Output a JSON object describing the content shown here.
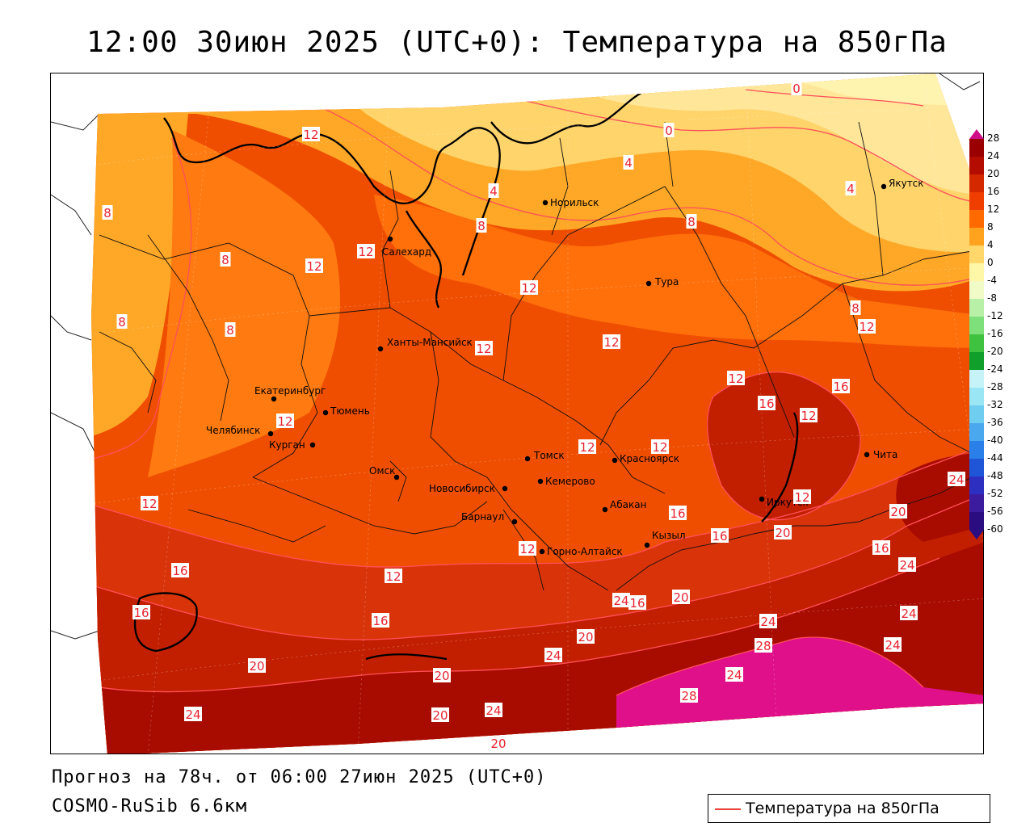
{
  "title": "12:00 30июн 2025 (UTC+0): Температура на 850гПа",
  "forecast_info": "Прогноз на 78ч. от 06:00 27июн 2025 (UTC+0)",
  "model_name": "COSMO-RuSib 6.6км",
  "legend": {
    "label": "Температура на 850гПа",
    "line_color": "#e8443a"
  },
  "colorbar": {
    "ticks": [
      "28",
      "24",
      "20",
      "16",
      "12",
      "8",
      "4",
      "0",
      "-4",
      "-8",
      "-12",
      "-16",
      "-20",
      "-24",
      "-28",
      "-32",
      "-36",
      "-40",
      "-44",
      "-48",
      "-52",
      "-56",
      "-60"
    ],
    "colors": [
      "#ce0f87",
      "#9b0000",
      "#b50c00",
      "#d32800",
      "#ef3e00",
      "#ff6a00",
      "#ffa31f",
      "#ffd76b",
      "#fff7a8",
      "#f0fbc8",
      "#b8f0a8",
      "#7de07a",
      "#3fc23f",
      "#0f9f2a",
      "#c6f3f8",
      "#9be6f4",
      "#6fcdf0",
      "#4aa8ee",
      "#2a7fe8",
      "#1f56d8",
      "#2c2fc0",
      "#3b1b9e",
      "#2a0d80"
    ]
  },
  "cities": [
    {
      "name": "Норильск"
    },
    {
      "name": "Якутск"
    },
    {
      "name": "Салехард"
    },
    {
      "name": "Тура"
    },
    {
      "name": "Ханты-Мансийск"
    },
    {
      "name": "Екатеринбург"
    },
    {
      "name": "Тюмень"
    },
    {
      "name": "Челябинск"
    },
    {
      "name": "Курган"
    },
    {
      "name": "Омск"
    },
    {
      "name": "Томск"
    },
    {
      "name": "Красноярск"
    },
    {
      "name": "Новосибирск"
    },
    {
      "name": "Кемерово"
    },
    {
      "name": "Абакан"
    },
    {
      "name": "Барнаул"
    },
    {
      "name": "Горно-Алтайск"
    },
    {
      "name": "Кызыл"
    },
    {
      "name": "Иркутск"
    },
    {
      "name": "Чита"
    }
  ],
  "isotherm_labels": [
    {
      "value": "12"
    },
    {
      "value": "0"
    },
    {
      "value": "0"
    },
    {
      "value": "4"
    },
    {
      "value": "4"
    },
    {
      "value": "4"
    },
    {
      "value": "8"
    },
    {
      "value": "8"
    },
    {
      "value": "8"
    },
    {
      "value": "8"
    },
    {
      "value": "12"
    },
    {
      "value": "12"
    },
    {
      "value": "8"
    },
    {
      "value": "8"
    },
    {
      "value": "12"
    },
    {
      "value": "12"
    },
    {
      "value": "12"
    },
    {
      "value": "8"
    },
    {
      "value": "12"
    },
    {
      "value": "12"
    },
    {
      "value": "16"
    },
    {
      "value": "16"
    },
    {
      "value": "12"
    },
    {
      "value": "12"
    },
    {
      "value": "12"
    },
    {
      "value": "12"
    },
    {
      "value": "12"
    },
    {
      "value": "16"
    },
    {
      "value": "16"
    },
    {
      "value": "16"
    },
    {
      "value": "24"
    },
    {
      "value": "20"
    },
    {
      "value": "20"
    },
    {
      "value": "16"
    },
    {
      "value": "12"
    },
    {
      "value": "12"
    },
    {
      "value": "16"
    },
    {
      "value": "12"
    },
    {
      "value": "16"
    },
    {
      "value": "16"
    },
    {
      "value": "20"
    },
    {
      "value": "24"
    },
    {
      "value": "20"
    },
    {
      "value": "24"
    },
    {
      "value": "24"
    },
    {
      "value": "20"
    },
    {
      "value": "28"
    },
    {
      "value": "24"
    },
    {
      "value": "24"
    },
    {
      "value": "24"
    },
    {
      "value": "28"
    },
    {
      "value": "20"
    },
    {
      "value": "24"
    },
    {
      "value": "20"
    },
    {
      "value": "24"
    },
    {
      "value": "20"
    },
    {
      "value": "24"
    }
  ]
}
